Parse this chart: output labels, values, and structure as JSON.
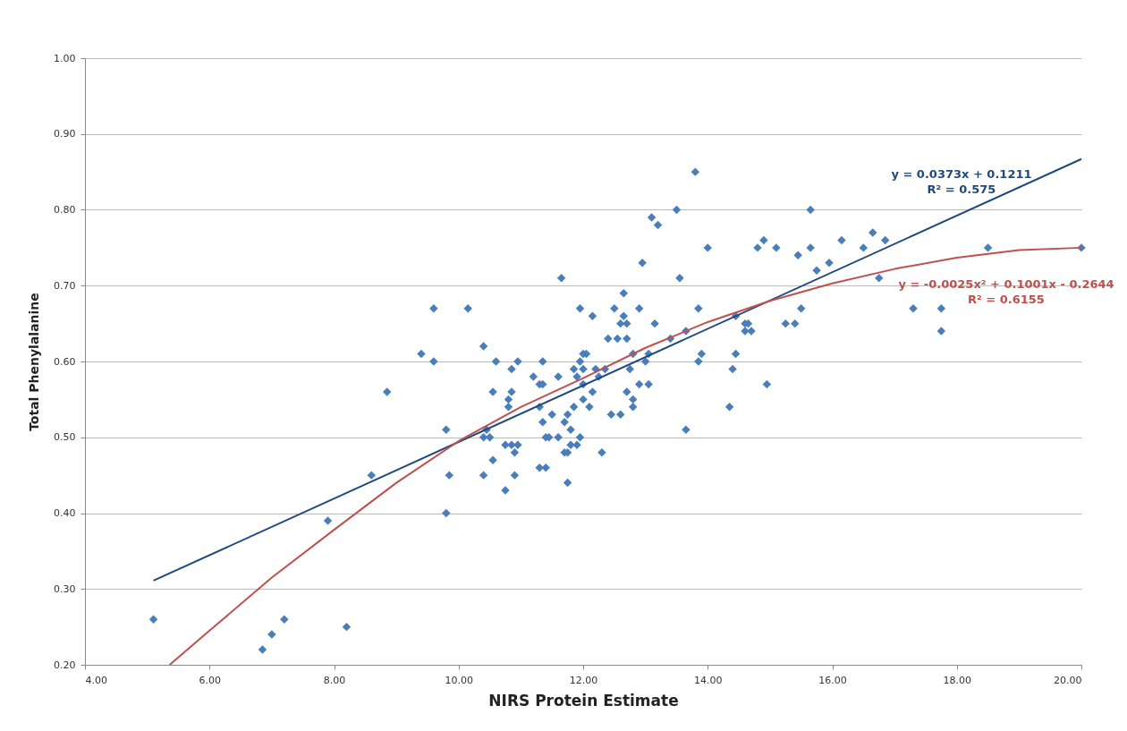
{
  "chart_data": {
    "type": "scatter",
    "xlabel": "NIRS Protein Estimate",
    "ylabel": "Total Phenylalanine",
    "xlim": [
      4,
      20
    ],
    "ylim": [
      0.2,
      1.0
    ],
    "xticks": [
      {
        "value": 4,
        "label": "4.00"
      },
      {
        "value": 6,
        "label": "6.00"
      },
      {
        "value": 8,
        "label": "8.00"
      },
      {
        "value": 10,
        "label": "10.00"
      },
      {
        "value": 12,
        "label": "12.00"
      },
      {
        "value": 14,
        "label": "14.00"
      },
      {
        "value": 16,
        "label": "16.00"
      },
      {
        "value": 18,
        "label": "18.00"
      },
      {
        "value": 20,
        "label": "20.00"
      }
    ],
    "yticks": [
      {
        "value": 0.2,
        "label": "0.20"
      },
      {
        "value": 0.3,
        "label": "0.30"
      },
      {
        "value": 0.4,
        "label": "0.40"
      },
      {
        "value": 0.5,
        "label": "0.50"
      },
      {
        "value": 0.6,
        "label": "0.60"
      },
      {
        "value": 0.7,
        "label": "0.70"
      },
      {
        "value": 0.8,
        "label": "0.80"
      },
      {
        "value": 0.9,
        "label": "0.90"
      },
      {
        "value": 1.0,
        "label": "1.00"
      }
    ],
    "grid": "y",
    "series": [
      {
        "color": "#4a7ebb",
        "marker": "diamond",
        "x": [
          5.1,
          6.85,
          7.0,
          7.2,
          7.9,
          8.2,
          8.6,
          8.85,
          9.4,
          9.6,
          9.6,
          9.8,
          9.8,
          9.85,
          10.15,
          10.4,
          10.4,
          10.4,
          10.45,
          10.5,
          10.55,
          10.55,
          10.6,
          10.75,
          10.75,
          10.8,
          10.8,
          10.85,
          10.85,
          10.85,
          10.9,
          10.9,
          10.95,
          10.95,
          11.2,
          11.3,
          11.3,
          11.3,
          11.35,
          11.35,
          11.35,
          11.4,
          11.4,
          11.45,
          11.5,
          11.6,
          11.6,
          11.65,
          11.7,
          11.7,
          11.75,
          11.75,
          11.75,
          11.8,
          11.8,
          11.85,
          11.85,
          11.9,
          11.9,
          11.95,
          11.95,
          11.95,
          12.0,
          12.0,
          12.0,
          12.0,
          12.05,
          12.1,
          12.15,
          12.15,
          12.2,
          12.25,
          12.3,
          12.35,
          12.4,
          12.45,
          12.5,
          12.55,
          12.6,
          12.6,
          12.65,
          12.65,
          12.7,
          12.7,
          12.7,
          12.75,
          12.8,
          12.8,
          12.8,
          12.9,
          12.9,
          12.95,
          13.0,
          13.05,
          13.05,
          13.1,
          13.15,
          13.2,
          13.4,
          13.5,
          13.55,
          13.65,
          13.65,
          13.8,
          13.85,
          13.85,
          13.9,
          14.0,
          14.35,
          14.4,
          14.45,
          14.45,
          14.6,
          14.6,
          14.65,
          14.7,
          14.8,
          14.9,
          14.95,
          15.1,
          15.25,
          15.4,
          15.45,
          15.5,
          15.65,
          15.65,
          15.75,
          15.95,
          16.15,
          16.5,
          16.65,
          16.75,
          16.85,
          17.3,
          17.75,
          17.75,
          18.5,
          20.0
        ],
        "values": [
          0.26,
          0.22,
          0.24,
          0.26,
          0.39,
          0.25,
          0.45,
          0.56,
          0.61,
          0.67,
          0.6,
          0.51,
          0.4,
          0.45,
          0.67,
          0.62,
          0.5,
          0.45,
          0.51,
          0.5,
          0.56,
          0.47,
          0.6,
          0.43,
          0.49,
          0.55,
          0.54,
          0.56,
          0.59,
          0.49,
          0.45,
          0.48,
          0.6,
          0.49,
          0.58,
          0.57,
          0.54,
          0.46,
          0.6,
          0.57,
          0.52,
          0.5,
          0.46,
          0.5,
          0.53,
          0.58,
          0.5,
          0.71,
          0.48,
          0.52,
          0.53,
          0.48,
          0.44,
          0.51,
          0.49,
          0.59,
          0.54,
          0.58,
          0.49,
          0.6,
          0.67,
          0.5,
          0.61,
          0.59,
          0.57,
          0.55,
          0.61,
          0.54,
          0.66,
          0.56,
          0.59,
          0.58,
          0.48,
          0.59,
          0.63,
          0.53,
          0.67,
          0.63,
          0.65,
          0.53,
          0.69,
          0.66,
          0.65,
          0.56,
          0.63,
          0.59,
          0.61,
          0.55,
          0.54,
          0.57,
          0.67,
          0.73,
          0.6,
          0.61,
          0.57,
          0.79,
          0.65,
          0.78,
          0.63,
          0.8,
          0.71,
          0.64,
          0.51,
          0.85,
          0.67,
          0.6,
          0.61,
          0.75,
          0.54,
          0.59,
          0.66,
          0.61,
          0.64,
          0.65,
          0.65,
          0.64,
          0.75,
          0.76,
          0.57,
          0.75,
          0.65,
          0.65,
          0.74,
          0.67,
          0.75,
          0.8,
          0.72,
          0.73,
          0.76,
          0.75,
          0.77,
          0.71,
          0.76,
          0.67,
          0.67,
          0.64,
          0.75,
          0.75
        ]
      },
      {
        "type": "line",
        "marker": "none",
        "color": "#1f497d",
        "x": [
          5.1,
          20.0
        ],
        "values": [
          0.311,
          0.867
        ]
      },
      {
        "type": "line",
        "marker": "none",
        "color": "#c0504d",
        "x": [
          5.36,
          6,
          7,
          8,
          9,
          10,
          11,
          12,
          13,
          14,
          15,
          16,
          17,
          18,
          19,
          20
        ],
        "values": [
          0.2,
          0.245,
          0.315,
          0.378,
          0.44,
          0.495,
          0.54,
          0.578,
          0.618,
          0.652,
          0.68,
          0.703,
          0.722,
          0.737,
          0.747,
          0.75
        ]
      }
    ],
    "annotations": [
      "y = 0.0373x + 0.1211\nR² = 0.575",
      "y = -0.0025x² + 0.1001x - 0.2644\nR² = 0.6155"
    ]
  }
}
